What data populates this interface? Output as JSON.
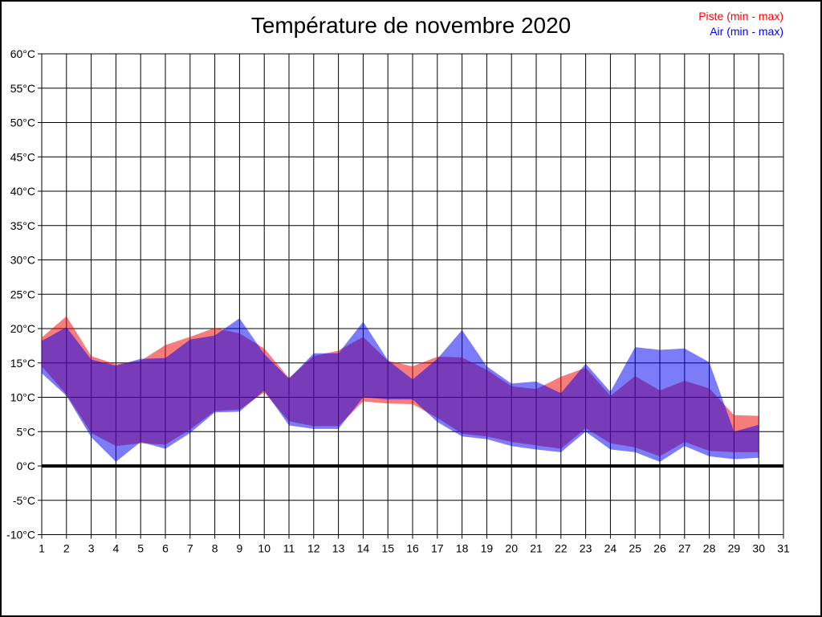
{
  "title": "Température de novembre 2020",
  "legend": [
    {
      "label": "Piste (min - max)",
      "color": "#ff0000"
    },
    {
      "label": "Air (min - max)",
      "color": "#0000ff"
    }
  ],
  "colors": {
    "piste_fill": "#f30000",
    "air_fill": "#0000f3",
    "fill_opacity": 0.514,
    "grid": "#000000",
    "zero_line": "#000000",
    "background": "#ffffff"
  },
  "chart_data": {
    "type": "area",
    "subtype": "min-max-band",
    "title": "Température de novembre 2020",
    "xlabel": "",
    "ylabel": "",
    "grid": true,
    "legend_position": "top-right",
    "xlim": [
      1,
      31
    ],
    "ylim": [
      -10,
      60
    ],
    "y_tick_step": 5,
    "zero_line": true,
    "x_ticks": [
      "1",
      "2",
      "3",
      "4",
      "5",
      "6",
      "7",
      "8",
      "9",
      "10",
      "11",
      "12",
      "13",
      "14",
      "15",
      "16",
      "17",
      "18",
      "19",
      "20",
      "21",
      "22",
      "23",
      "24",
      "25",
      "26",
      "27",
      "28",
      "29",
      "30",
      "31"
    ],
    "y_ticks": [
      "60°C",
      "55°C",
      "50°C",
      "45°C",
      "40°C",
      "35°C",
      "30°C",
      "25°C",
      "20°C",
      "15°C",
      "10°C",
      "5°C",
      "0°C",
      "-5°C",
      "-10°C"
    ],
    "y_tick_values": [
      60,
      55,
      50,
      45,
      40,
      35,
      30,
      25,
      20,
      15,
      10,
      5,
      0,
      -5,
      -10
    ],
    "x": [
      1,
      2,
      3,
      4,
      5,
      6,
      7,
      8,
      9,
      10,
      11,
      12,
      13,
      14,
      15,
      16,
      17,
      18,
      19,
      20,
      21,
      22,
      23,
      24,
      25,
      26,
      27,
      28,
      29,
      30
    ],
    "series": [
      {
        "name": "Piste (min - max)",
        "min": [
          14.5,
          10.4,
          4.8,
          2.9,
          3.3,
          3.1,
          5.3,
          8.0,
          8.2,
          10.7,
          6.5,
          5.8,
          5.8,
          9.4,
          9.1,
          9.0,
          7.0,
          4.7,
          4.3,
          3.5,
          3.0,
          2.5,
          5.5,
          3.3,
          2.7,
          1.4,
          3.5,
          2.2,
          2.0,
          2.0
        ],
        "max": [
          18.7,
          21.8,
          16.0,
          14.8,
          15.3,
          17.6,
          18.8,
          20.1,
          19.3,
          17.1,
          12.8,
          16.0,
          16.8,
          18.8,
          15.3,
          14.5,
          15.9,
          15.8,
          14.0,
          11.6,
          11.2,
          13.0,
          14.3,
          10.2,
          13.1,
          11.0,
          12.4,
          11.3,
          7.4,
          7.3
        ]
      },
      {
        "name": "Air (min - max)",
        "min": [
          13.5,
          10.2,
          4.2,
          0.6,
          3.5,
          2.5,
          4.8,
          7.8,
          7.9,
          11.0,
          5.9,
          5.4,
          5.4,
          10.0,
          9.7,
          9.7,
          6.4,
          4.3,
          3.9,
          2.9,
          2.4,
          2.0,
          5.0,
          2.4,
          2.0,
          0.6,
          2.9,
          1.4,
          1.0,
          1.2
        ],
        "max": [
          18.2,
          20.2,
          15.5,
          14.6,
          15.6,
          15.7,
          18.4,
          19.0,
          21.5,
          16.3,
          12.7,
          16.4,
          16.4,
          21.0,
          15.4,
          12.6,
          15.6,
          19.8,
          14.5,
          12.0,
          12.3,
          10.6,
          14.9,
          10.8,
          17.3,
          16.9,
          17.1,
          15.1,
          5.0,
          6.0
        ]
      }
    ]
  }
}
